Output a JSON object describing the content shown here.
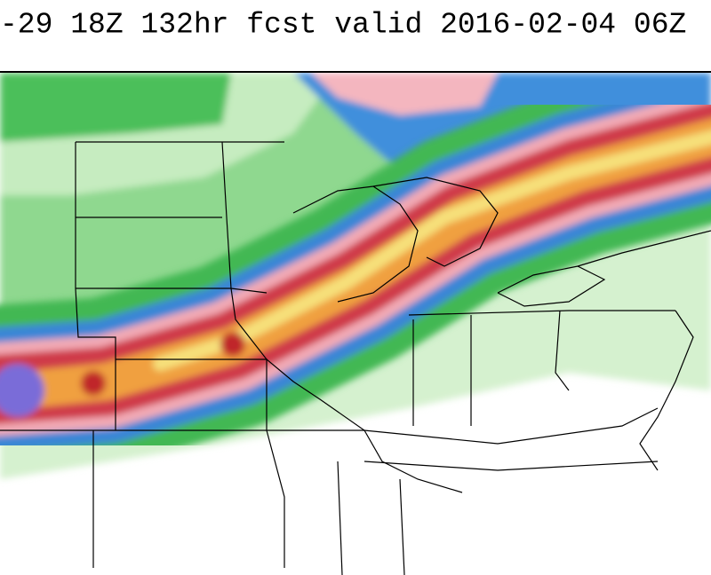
{
  "header": {
    "title": "-29 18Z 132hr fcst valid 2016-02-04 06Z"
  }
}
